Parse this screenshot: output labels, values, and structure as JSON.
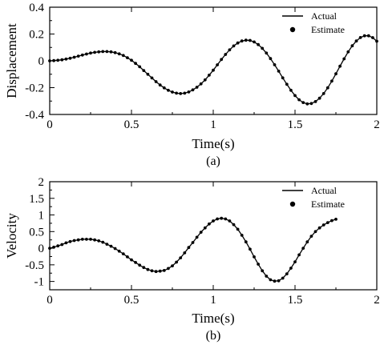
{
  "chart_data": [
    {
      "type": "line",
      "caption": "(a)",
      "xlabel": "Time(s)",
      "ylabel": "Displacement",
      "xlim": [
        0,
        2
      ],
      "ylim": [
        -0.4,
        0.4
      ],
      "xticks": [
        "0",
        "0.5",
        "1",
        "1.5",
        "2"
      ],
      "yticks": [
        "0.4",
        "0.2",
        "0",
        "-0.2",
        "-0.4"
      ],
      "grid": false,
      "legend_position": "top-right",
      "x_start": 0,
      "x_step": 0.025,
      "series": [
        {
          "name": "Actual",
          "style": "line",
          "color": "#000000",
          "values": [
            0,
            0.002,
            0.004,
            0.008,
            0.013,
            0.019,
            0.027,
            0.035,
            0.043,
            0.051,
            0.058,
            0.063,
            0.067,
            0.069,
            0.069,
            0.067,
            0.061,
            0.052,
            0.04,
            0.023,
            0.004,
            -0.019,
            -0.044,
            -0.072,
            -0.1,
            -0.128,
            -0.155,
            -0.18,
            -0.202,
            -0.22,
            -0.233,
            -0.241,
            -0.244,
            -0.241,
            -0.232,
            -0.217,
            -0.197,
            -0.172,
            -0.142,
            -0.107,
            -0.07,
            -0.03,
            0.01,
            0.048,
            0.082,
            0.111,
            0.133,
            0.148,
            0.154,
            0.152,
            0.141,
            0.121,
            0.093,
            0.058,
            0.017,
            -0.029,
            -0.077,
            -0.127,
            -0.175,
            -0.22,
            -0.259,
            -0.29,
            -0.311,
            -0.321,
            -0.318,
            -0.304,
            -0.279,
            -0.244,
            -0.201,
            -0.151,
            -0.097,
            -0.04,
            0.015,
            0.067,
            0.112,
            0.148,
            0.174,
            0.187,
            0.187,
            0.173,
            0.146
          ]
        },
        {
          "name": "Estimate",
          "style": "marker",
          "color": "#000000",
          "values": [
            0,
            0.002,
            0.004,
            0.008,
            0.013,
            0.019,
            0.027,
            0.035,
            0.043,
            0.051,
            0.058,
            0.063,
            0.067,
            0.069,
            0.069,
            0.067,
            0.061,
            0.052,
            0.04,
            0.023,
            0.004,
            -0.019,
            -0.044,
            -0.072,
            -0.1,
            -0.128,
            -0.155,
            -0.18,
            -0.202,
            -0.22,
            -0.233,
            -0.241,
            -0.244,
            -0.241,
            -0.232,
            -0.217,
            -0.197,
            -0.172,
            -0.142,
            -0.107,
            -0.07,
            -0.03,
            0.01,
            0.048,
            0.082,
            0.111,
            0.133,
            0.148,
            0.154,
            0.152,
            0.141,
            0.121,
            0.093,
            0.058,
            0.017,
            -0.029,
            -0.077,
            -0.127,
            -0.175,
            -0.22,
            -0.259,
            -0.29,
            -0.311,
            -0.321,
            -0.318,
            -0.304,
            -0.279,
            -0.244,
            -0.201,
            -0.151,
            -0.097,
            -0.04,
            0.015,
            0.067,
            0.112,
            0.148,
            0.174,
            0.187,
            0.187,
            0.173,
            0.146
          ]
        }
      ]
    },
    {
      "type": "line",
      "caption": "(b)",
      "xlabel": "Time(s)",
      "ylabel": "Velocity",
      "xlim": [
        0,
        2
      ],
      "ylim": [
        -1.25,
        2
      ],
      "xticks": [
        "0",
        "0.5",
        "1",
        "1.5",
        "2"
      ],
      "yticks": [
        "2",
        "1.5",
        "1",
        "0.5",
        "0",
        "-0.5",
        "-1"
      ],
      "grid": false,
      "legend_position": "top-right",
      "x_start": 0,
      "x_step": 0.025,
      "series": [
        {
          "name": "Actual",
          "style": "line",
          "color": "#000000",
          "values": [
            0,
            0.03,
            0.07,
            0.11,
            0.16,
            0.2,
            0.23,
            0.25,
            0.27,
            0.27,
            0.27,
            0.25,
            0.22,
            0.18,
            0.12,
            0.06,
            -0.01,
            -0.09,
            -0.17,
            -0.26,
            -0.35,
            -0.43,
            -0.51,
            -0.58,
            -0.64,
            -0.68,
            -0.7,
            -0.69,
            -0.67,
            -0.61,
            -0.53,
            -0.42,
            -0.29,
            -0.14,
            0.02,
            0.17,
            0.33,
            0.48,
            0.61,
            0.73,
            0.82,
            0.88,
            0.9,
            0.88,
            0.82,
            0.71,
            0.57,
            0.39,
            0.19,
            -0.03,
            -0.26,
            -0.48,
            -0.68,
            -0.84,
            -0.95,
            -0.99,
            -0.98,
            -0.9,
            -0.77,
            -0.6,
            -0.41,
            -0.2,
            0,
            0.19,
            0.36,
            0.5,
            0.61,
            0.7,
            0.77,
            0.83,
            0.87
          ]
        },
        {
          "name": "Estimate",
          "style": "marker",
          "color": "#000000",
          "values": [
            0,
            0.03,
            0.07,
            0.11,
            0.16,
            0.2,
            0.23,
            0.25,
            0.27,
            0.27,
            0.27,
            0.25,
            0.22,
            0.18,
            0.12,
            0.06,
            -0.01,
            -0.09,
            -0.17,
            -0.26,
            -0.35,
            -0.43,
            -0.51,
            -0.58,
            -0.64,
            -0.68,
            -0.7,
            -0.69,
            -0.67,
            -0.61,
            -0.53,
            -0.42,
            -0.29,
            -0.14,
            0.02,
            0.17,
            0.33,
            0.48,
            0.61,
            0.73,
            0.82,
            0.88,
            0.9,
            0.88,
            0.82,
            0.71,
            0.57,
            0.39,
            0.19,
            -0.03,
            -0.26,
            -0.48,
            -0.68,
            -0.84,
            -0.95,
            -0.99,
            -0.98,
            -0.9,
            -0.77,
            -0.6,
            -0.41,
            -0.2,
            0,
            0.19,
            0.36,
            0.5,
            0.61,
            0.7,
            0.77,
            0.83,
            0.87
          ]
        }
      ]
    }
  ]
}
